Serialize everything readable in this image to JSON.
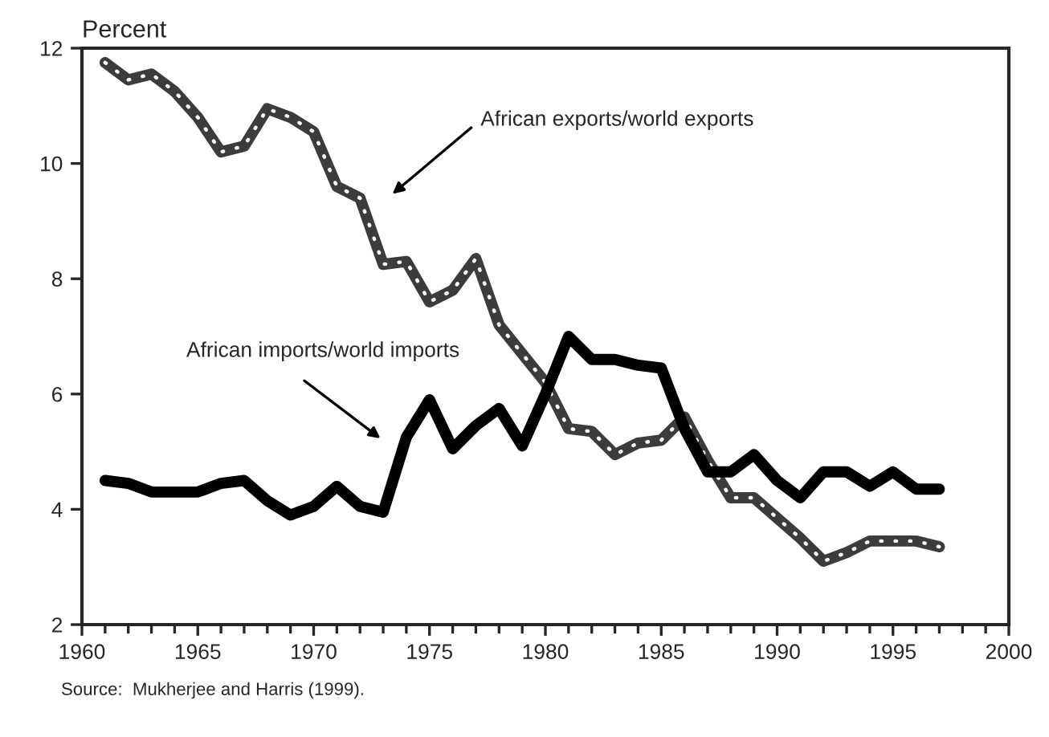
{
  "chart_data": {
    "type": "line",
    "ylabel": "Percent",
    "x": [
      1961,
      1962,
      1963,
      1964,
      1965,
      1966,
      1967,
      1968,
      1969,
      1970,
      1971,
      1972,
      1973,
      1974,
      1975,
      1976,
      1977,
      1978,
      1979,
      1980,
      1981,
      1982,
      1983,
      1984,
      1985,
      1986,
      1987,
      1988,
      1989,
      1990,
      1991,
      1992,
      1993,
      1994,
      1995,
      1996,
      1997
    ],
    "series": [
      {
        "color": "#3c3c3c",
        "values": [
          11.75,
          11.45,
          11.55,
          11.25,
          10.8,
          10.2,
          10.3,
          10.95,
          10.8,
          10.55,
          9.6,
          9.4,
          8.25,
          8.3,
          7.6,
          7.8,
          8.35,
          7.2,
          6.7,
          6.2,
          5.4,
          5.35,
          4.95,
          5.15,
          5.2,
          5.6,
          4.85,
          4.2,
          4.2,
          3.85,
          3.5,
          3.1,
          3.25,
          3.45,
          3.45,
          3.45,
          3.35
        ]
      },
      {
        "color": "#000000",
        "values": [
          4.5,
          4.45,
          4.3,
          4.3,
          4.3,
          4.45,
          4.5,
          4.15,
          3.9,
          4.05,
          4.4,
          4.05,
          3.95,
          5.25,
          5.9,
          5.05,
          5.45,
          5.75,
          5.1,
          6.0,
          7.0,
          6.6,
          6.6,
          6.5,
          6.45,
          5.4,
          4.65,
          4.65,
          4.95,
          4.5,
          4.2,
          4.65,
          4.65,
          4.4,
          4.65,
          4.35,
          4.35
        ]
      }
    ],
    "xlim": [
      1960,
      2000
    ],
    "xticks": [
      1960,
      1965,
      1970,
      1975,
      1980,
      1985,
      1990,
      1995,
      2000
    ],
    "ylim": [
      2,
      12
    ],
    "yticks": [
      2,
      4,
      6,
      8,
      10,
      12
    ],
    "annotations": [
      "African exports/world exports",
      "African imports/world imports",
      "Source:  Mukherjee and Harris (1999)."
    ],
    "grid": false,
    "legend": false
  }
}
